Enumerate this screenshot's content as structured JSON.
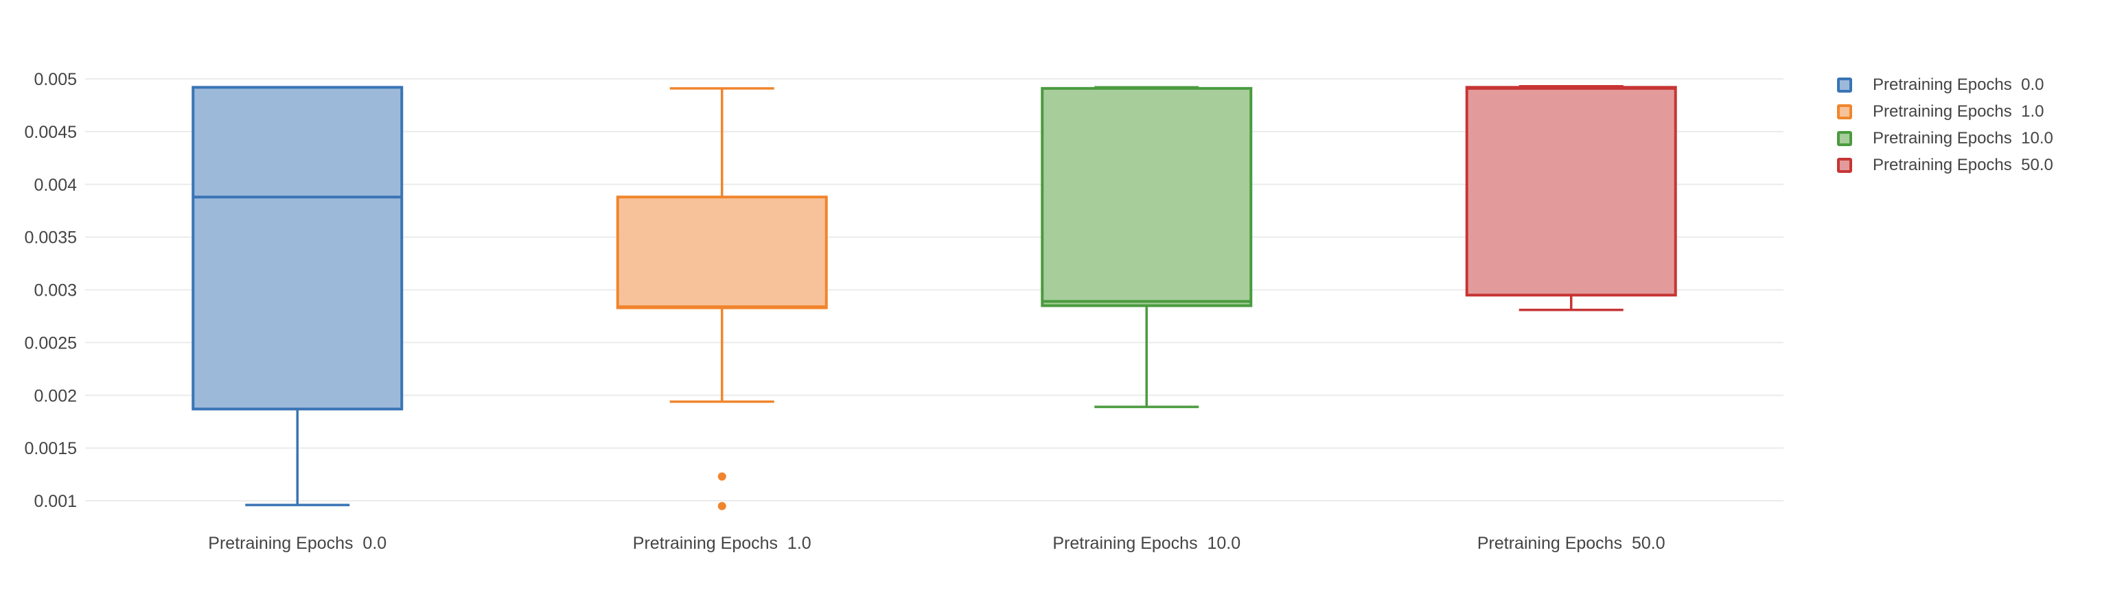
{
  "chart_data": {
    "type": "box",
    "title": "",
    "xlabel": "",
    "ylabel": "",
    "ylim": [
      0.00085,
      0.005
    ],
    "y_ticks": [
      "0.005",
      "0.0045",
      "0.004",
      "0.0035",
      "0.003",
      "0.0025",
      "0.002",
      "0.0015",
      "0.001"
    ],
    "y_tick_values": [
      0.005,
      0.0045,
      0.004,
      0.0035,
      0.003,
      0.0025,
      0.002,
      0.0015,
      0.001
    ],
    "grid": true,
    "legend_position": "top-right",
    "categories": [
      "Pretraining Epochs  0.0",
      "Pretraining Epochs  1.0",
      "Pretraining Epochs  10.0",
      "Pretraining Epochs  50.0"
    ],
    "series": [
      {
        "name": "Pretraining Epochs  0.0",
        "color": "#3a74b5",
        "fill": "#9db9da",
        "whisker_low": 0.00096,
        "q1": 0.00187,
        "median": 0.00388,
        "q3": 0.00492,
        "whisker_high": 0.00492,
        "outliers": []
      },
      {
        "name": "Pretraining Epochs  1.0",
        "color": "#f0852d",
        "fill": "#f7c29a",
        "whisker_low": 0.00194,
        "q1": 0.00283,
        "median": 0.00284,
        "q3": 0.00388,
        "whisker_high": 0.00491,
        "outliers": [
          0.00123,
          0.00095
        ]
      },
      {
        "name": "Pretraining Epochs  10.0",
        "color": "#4a9b3f",
        "fill": "#a7cd9b",
        "whisker_low": 0.00189,
        "q1": 0.00285,
        "median": 0.00289,
        "q3": 0.00491,
        "whisker_high": 0.00492,
        "outliers": []
      },
      {
        "name": "Pretraining Epochs  50.0",
        "color": "#c73535",
        "fill": "#e29b9a",
        "whisker_low": 0.00281,
        "q1": 0.00295,
        "median": 0.00491,
        "q3": 0.00492,
        "whisker_high": 0.00493,
        "outliers": []
      }
    ]
  }
}
